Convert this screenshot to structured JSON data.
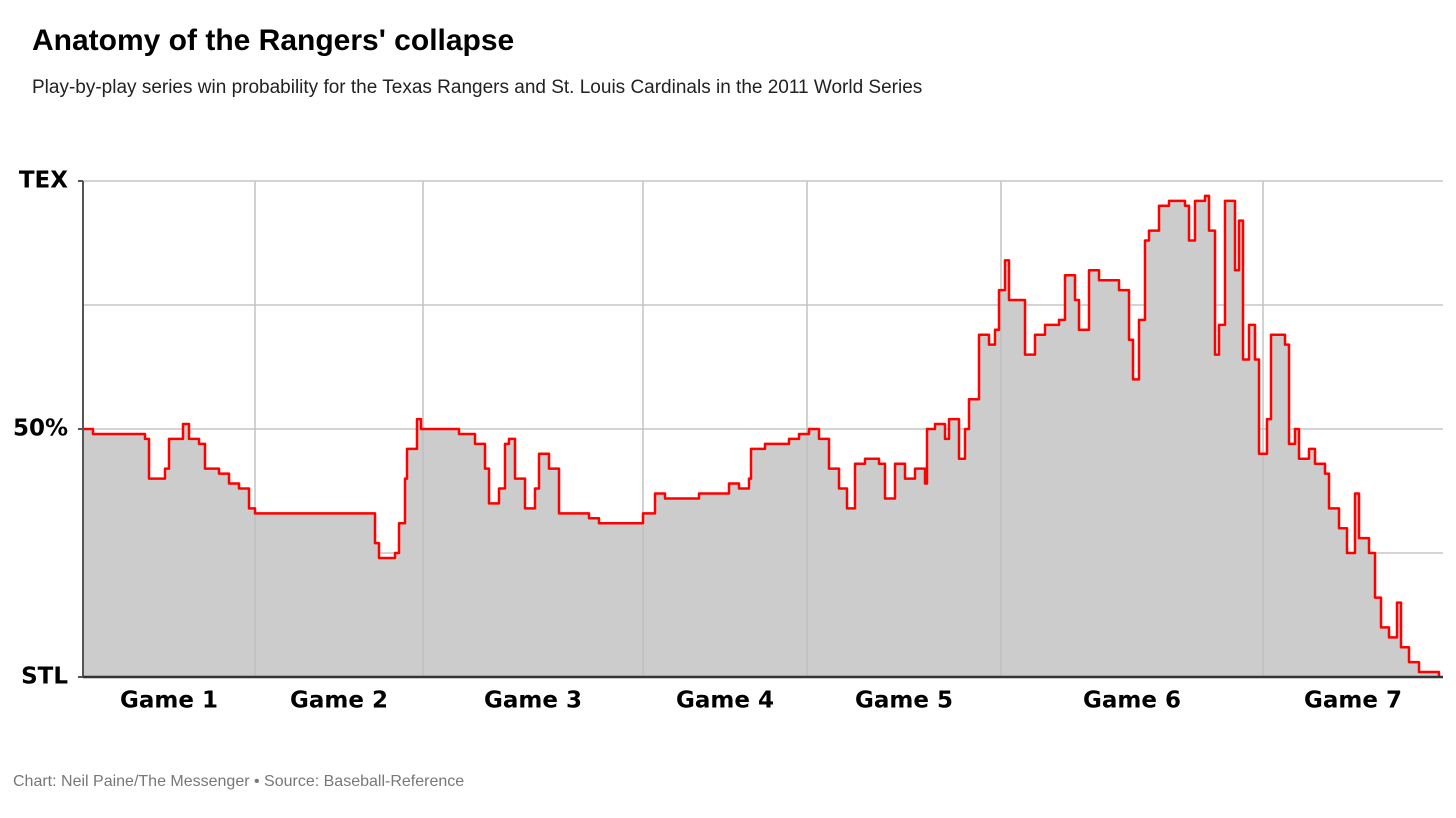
{
  "chart_data": {
    "type": "area",
    "step": true,
    "title": "Anatomy of the Rangers' collapse",
    "subtitle": "Play-by-play series win probability for the Texas Rangers and St. Louis Cardinals in the 2011 World Series",
    "footer": "Chart: Neil Paine/The Messenger • Source: Baseball-Reference",
    "categories": [
      "Game 1",
      "Game 2",
      "Game 3",
      "Game 4",
      "Game 5",
      "Game 6",
      "Game 7"
    ],
    "game_starts": [
      0,
      86,
      170,
      280,
      362,
      459,
      590
    ],
    "xlim": [
      0,
      680
    ],
    "ylim": [
      0,
      100
    ],
    "yticks": [
      {
        "value": 0,
        "label": "STL"
      },
      {
        "value": 50,
        "label": "50%"
      },
      {
        "value": 100,
        "label": "TEX"
      }
    ],
    "ygrid": [
      0,
      25,
      50,
      75,
      100
    ],
    "color": "#ff0000",
    "fill_color": "#cccccc",
    "grid": true,
    "x": [
      0,
      5,
      31,
      33,
      41,
      43,
      50,
      53,
      58,
      61,
      68,
      73,
      78,
      83,
      86,
      143,
      146,
      148,
      156,
      158,
      161,
      162,
      167,
      169,
      183,
      188,
      196,
      201,
      203,
      208,
      211,
      213,
      216,
      221,
      226,
      228,
      233,
      238,
      253,
      258,
      280,
      286,
      291,
      308,
      323,
      328,
      333,
      334,
      341,
      353,
      358,
      363,
      368,
      373,
      378,
      382,
      386,
      391,
      398,
      401,
      406,
      411,
      416,
      421,
      422,
      426,
      431,
      433,
      438,
      441,
      443,
      448,
      453,
      456,
      458,
      461,
      463,
      471,
      476,
      481,
      488,
      491,
      496,
      498,
      503,
      508,
      518,
      523,
      525,
      528,
      531,
      533,
      538,
      543,
      551,
      553,
      556,
      561,
      563,
      566,
      568,
      571,
      576,
      578,
      580,
      583,
      586,
      588,
      592,
      594,
      601,
      603,
      606,
      608,
      613,
      616,
      621,
      623,
      628,
      632,
      636,
      638,
      643,
      646,
      649,
      653,
      657,
      659,
      663,
      668,
      678
    ],
    "values": [
      50,
      49,
      48,
      40,
      42,
      48,
      51,
      48,
      47,
      42,
      41,
      39,
      38,
      34,
      33,
      33,
      27,
      24,
      25,
      31,
      40,
      46,
      52,
      50,
      50,
      49,
      47,
      42,
      35,
      38,
      47,
      48,
      40,
      34,
      38,
      45,
      42,
      33,
      32,
      31,
      33,
      37,
      36,
      37,
      39,
      38,
      40,
      46,
      47,
      48,
      49,
      50,
      48,
      42,
      38,
      34,
      43,
      44,
      43,
      36,
      43,
      40,
      42,
      39,
      50,
      51,
      48,
      52,
      44,
      50,
      56,
      69,
      67,
      70,
      78,
      84,
      76,
      65,
      69,
      71,
      72,
      81,
      76,
      70,
      82,
      80,
      78,
      68,
      60,
      72,
      88,
      90,
      95,
      96,
      95,
      88,
      96,
      97,
      90,
      65,
      71,
      96,
      82,
      92,
      64,
      71,
      64,
      45,
      52,
      69,
      67,
      47,
      50,
      44,
      46,
      43,
      41,
      34,
      30,
      25,
      37,
      28,
      25,
      16,
      10,
      8,
      15,
      6,
      3,
      1,
      0
    ]
  }
}
